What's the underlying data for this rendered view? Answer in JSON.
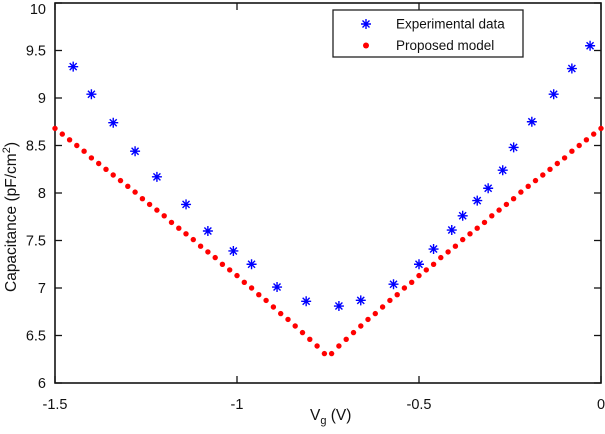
{
  "window": {
    "background": "#ffffff",
    "axis_color": "#141414"
  },
  "chart_data": {
    "type": "scatter",
    "title": "",
    "xlabel_parts": {
      "main": "V",
      "sub": "g",
      "rest": " (V)"
    },
    "ylabel_parts": {
      "main": "Capacitance  (pF/cm",
      "sup": "2",
      "rest": ")"
    },
    "xlim": [
      -1.5,
      0
    ],
    "ylim": [
      6,
      10
    ],
    "x_ticks": [
      -1.5,
      -1,
      -0.5,
      0
    ],
    "x_tick_labels": [
      "-1.5",
      "-1",
      "-0.5",
      "0"
    ],
    "y_ticks": [
      6,
      6.5,
      7,
      7.5,
      8,
      8.5,
      9,
      9.5,
      10
    ],
    "y_tick_labels": [
      "6",
      "6.5",
      "7",
      "7.5",
      "8",
      "8.5",
      "9",
      "9.5",
      "10"
    ],
    "grid": false,
    "legend": {
      "position": "top-center-inside",
      "border": true,
      "entries": [
        {
          "label": "Experimental data",
          "marker": "asterisk",
          "color": "#0000ff"
        },
        {
          "label": "Proposed model",
          "marker": "dot",
          "color": "#ff0000"
        }
      ]
    },
    "series": [
      {
        "name": "Experimental data",
        "marker": "asterisk",
        "color": "#0000ff",
        "points": [
          [
            -1.45,
            9.33
          ],
          [
            -1.4,
            9.04
          ],
          [
            -1.34,
            8.74
          ],
          [
            -1.28,
            8.44
          ],
          [
            -1.22,
            8.17
          ],
          [
            -1.14,
            7.88
          ],
          [
            -1.08,
            7.6
          ],
          [
            -1.01,
            7.39
          ],
          [
            -0.96,
            7.25
          ],
          [
            -0.89,
            7.01
          ],
          [
            -0.81,
            6.86
          ],
          [
            -0.72,
            6.81
          ],
          [
            -0.66,
            6.87
          ],
          [
            -0.57,
            7.04
          ],
          [
            -0.5,
            7.25
          ],
          [
            -0.46,
            7.41
          ],
          [
            -0.41,
            7.61
          ],
          [
            -0.38,
            7.76
          ],
          [
            -0.34,
            7.92
          ],
          [
            -0.31,
            8.05
          ],
          [
            -0.27,
            8.24
          ],
          [
            -0.24,
            8.48
          ],
          [
            -0.19,
            8.75
          ],
          [
            -0.13,
            9.04
          ],
          [
            -0.08,
            9.31
          ],
          [
            -0.03,
            9.55
          ]
        ]
      },
      {
        "name": "Proposed model",
        "marker": "dot",
        "color": "#ff0000",
        "points": [
          [
            -1.5,
            8.68
          ],
          [
            -1.48,
            8.62
          ],
          [
            -1.46,
            8.56
          ],
          [
            -1.44,
            8.5
          ],
          [
            -1.42,
            8.44
          ],
          [
            -1.4,
            8.37
          ],
          [
            -1.38,
            8.31
          ],
          [
            -1.36,
            8.25
          ],
          [
            -1.34,
            8.19
          ],
          [
            -1.32,
            8.13
          ],
          [
            -1.3,
            8.07
          ],
          [
            -1.28,
            8.01
          ],
          [
            -1.26,
            7.94
          ],
          [
            -1.24,
            7.88
          ],
          [
            -1.22,
            7.82
          ],
          [
            -1.2,
            7.76
          ],
          [
            -1.18,
            7.69
          ],
          [
            -1.16,
            7.63
          ],
          [
            -1.14,
            7.57
          ],
          [
            -1.12,
            7.51
          ],
          [
            -1.1,
            7.44
          ],
          [
            -1.08,
            7.38
          ],
          [
            -1.06,
            7.32
          ],
          [
            -1.04,
            7.25
          ],
          [
            -1.02,
            7.19
          ],
          [
            -1.0,
            7.13
          ],
          [
            -0.98,
            7.06
          ],
          [
            -0.96,
            7.0
          ],
          [
            -0.94,
            6.93
          ],
          [
            -0.92,
            6.87
          ],
          [
            -0.9,
            6.8
          ],
          [
            -0.88,
            6.73
          ],
          [
            -0.86,
            6.67
          ],
          [
            -0.84,
            6.6
          ],
          [
            -0.82,
            6.53
          ],
          [
            -0.8,
            6.46
          ],
          [
            -0.78,
            6.39
          ],
          [
            -0.76,
            6.31
          ],
          [
            -0.74,
            6.31
          ],
          [
            -0.72,
            6.39
          ],
          [
            -0.7,
            6.46
          ],
          [
            -0.68,
            6.53
          ],
          [
            -0.66,
            6.6
          ],
          [
            -0.64,
            6.67
          ],
          [
            -0.62,
            6.73
          ],
          [
            -0.6,
            6.8
          ],
          [
            -0.58,
            6.87
          ],
          [
            -0.56,
            6.93
          ],
          [
            -0.54,
            7.0
          ],
          [
            -0.52,
            7.06
          ],
          [
            -0.5,
            7.13
          ],
          [
            -0.48,
            7.19
          ],
          [
            -0.46,
            7.25
          ],
          [
            -0.44,
            7.32
          ],
          [
            -0.42,
            7.38
          ],
          [
            -0.4,
            7.44
          ],
          [
            -0.38,
            7.51
          ],
          [
            -0.36,
            7.57
          ],
          [
            -0.34,
            7.63
          ],
          [
            -0.32,
            7.69
          ],
          [
            -0.3,
            7.76
          ],
          [
            -0.28,
            7.82
          ],
          [
            -0.26,
            7.88
          ],
          [
            -0.24,
            7.94
          ],
          [
            -0.22,
            8.01
          ],
          [
            -0.2,
            8.07
          ],
          [
            -0.18,
            8.13
          ],
          [
            -0.16,
            8.19
          ],
          [
            -0.14,
            8.25
          ],
          [
            -0.12,
            8.31
          ],
          [
            -0.1,
            8.37
          ],
          [
            -0.08,
            8.44
          ],
          [
            -0.06,
            8.5
          ],
          [
            -0.04,
            8.56
          ],
          [
            -0.02,
            8.62
          ],
          [
            0.0,
            8.68
          ]
        ]
      }
    ]
  }
}
